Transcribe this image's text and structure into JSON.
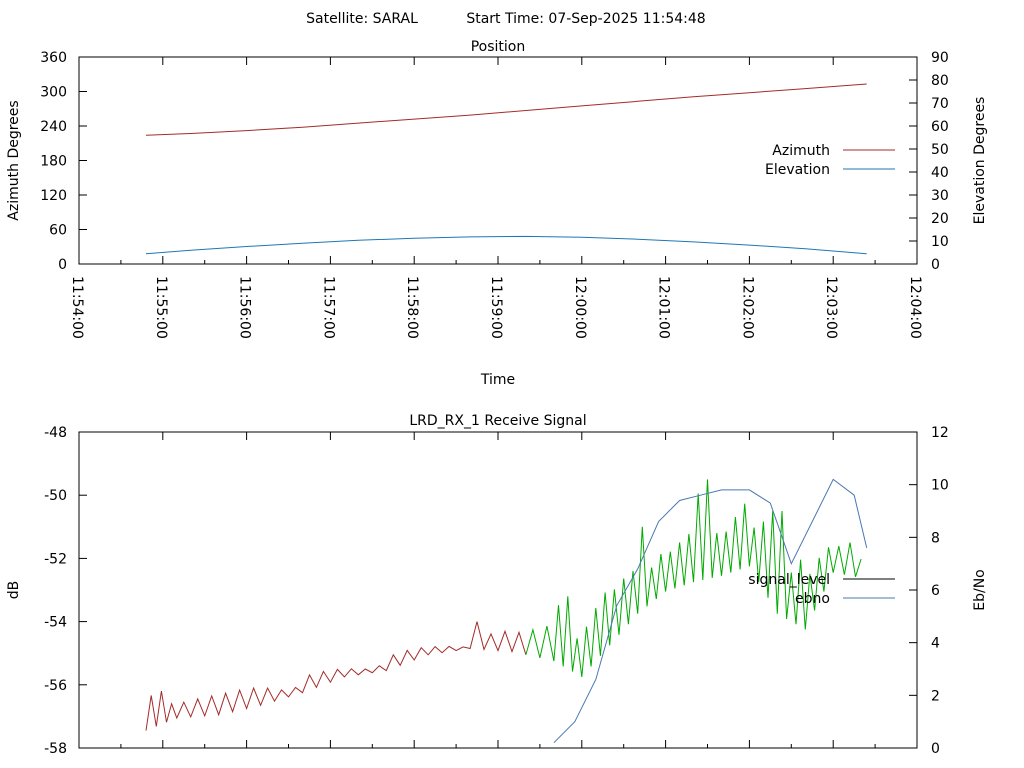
{
  "header": {
    "satellite": "Satellite: SARAL",
    "start_time": "Start Time: 07-Sep-2025 11:54:48"
  },
  "chart_data": [
    {
      "type": "line",
      "title": "Position",
      "xlabel": "Time",
      "ylabel": "Azimuth Degrees",
      "y2label": "Elevation Degrees",
      "x_ticks": [
        "11:54:00",
        "11:55:00",
        "11:56:00",
        "11:57:00",
        "11:58:00",
        "11:59:00",
        "12:00:00",
        "12:01:00",
        "12:02:00",
        "12:03:00",
        "12:04:00"
      ],
      "xlim": [
        "11:54:00",
        "12:04:00"
      ],
      "ylim": [
        0,
        360
      ],
      "y_ticks": [
        0,
        60,
        120,
        180,
        240,
        300,
        360
      ],
      "y2lim": [
        0,
        90
      ],
      "y2_ticks": [
        0,
        10,
        20,
        30,
        40,
        50,
        60,
        70,
        80,
        90
      ],
      "legend": "right",
      "series": [
        {
          "name": "Azimuth",
          "axis": "y",
          "color": "#a52a2a",
          "x": [
            "11:54:48",
            "11:55:20",
            "11:56:00",
            "11:56:40",
            "11:57:20",
            "11:58:00",
            "11:58:40",
            "11:59:20",
            "12:00:00",
            "12:00:40",
            "12:01:20",
            "12:02:00",
            "12:02:40",
            "12:03:24"
          ],
          "y": [
            224,
            227,
            232,
            238,
            245,
            252,
            259,
            267,
            275,
            283,
            291,
            298,
            305,
            313
          ]
        },
        {
          "name": "Elevation",
          "axis": "y2",
          "color": "#1f77b4",
          "x": [
            "11:54:48",
            "11:55:20",
            "11:56:00",
            "11:56:40",
            "11:57:20",
            "11:58:00",
            "11:58:40",
            "11:59:20",
            "12:00:00",
            "12:00:40",
            "12:01:20",
            "12:02:00",
            "12:02:40",
            "12:03:24"
          ],
          "y": [
            4.5,
            6.0,
            7.6,
            9.0,
            10.3,
            11.2,
            11.8,
            12.0,
            11.6,
            10.8,
            9.6,
            8.2,
            6.6,
            4.5
          ]
        }
      ]
    },
    {
      "type": "line",
      "title": "LRD_RX_1 Receive Signal",
      "xlabel": "",
      "ylabel": "dB",
      "y2label": "Eb/No",
      "xlim": [
        "11:54:00",
        "12:04:00"
      ],
      "ylim": [
        -58,
        -48
      ],
      "y_ticks": [
        -58,
        -56,
        -54,
        -52,
        -50,
        -48
      ],
      "y2lim": [
        0,
        12
      ],
      "y2_ticks": [
        0,
        2,
        4,
        6,
        8,
        10,
        12
      ],
      "legend": "right",
      "series": [
        {
          "name": "signal_level",
          "axis": "y",
          "color": "#a52a2a",
          "color_late": "#00aa00",
          "x": [
            "11:54:48",
            "11:55:10",
            "11:55:40",
            "11:56:10",
            "11:56:40",
            "11:57:10",
            "11:57:40",
            "11:58:10",
            "11:58:40",
            "11:59:10",
            "11:59:40",
            "12:00:00",
            "12:00:20",
            "12:00:40",
            "12:01:00",
            "12:01:20",
            "12:01:40",
            "12:02:00",
            "12:02:20",
            "12:02:40",
            "12:03:00",
            "12:03:24"
          ],
          "y": [
            -57.2,
            -56.8,
            -56.7,
            -56.4,
            -56.0,
            -55.5,
            -55.3,
            -54.8,
            -54.6,
            -54.7,
            -55.0,
            -55.5,
            -54.5,
            -53.5,
            -52.8,
            -52.5,
            -52.3,
            -52.0,
            -53.5,
            -54.0,
            -52.2,
            -52.4
          ],
          "peaks": [
            -56.2,
            -56.1,
            -55.5,
            -54.8,
            -54.0,
            -53.2,
            -52.4,
            -51.0,
            -49.5,
            -50.5,
            -51.5,
            -51.8
          ]
        },
        {
          "name": "ebno",
          "axis": "y2",
          "color": "#4a78b0",
          "x": [
            "11:59:40",
            "11:59:55",
            "12:00:10",
            "12:00:25",
            "12:00:40",
            "12:00:55",
            "12:01:10",
            "12:01:25",
            "12:01:40",
            "12:02:00",
            "12:02:15",
            "12:02:30",
            "12:02:45",
            "12:03:00",
            "12:03:15",
            "12:03:24"
          ],
          "y": [
            0.2,
            1.0,
            2.6,
            5.4,
            6.8,
            8.6,
            9.4,
            9.6,
            9.8,
            9.8,
            9.3,
            7.0,
            8.6,
            10.2,
            9.6,
            7.6
          ]
        }
      ]
    }
  ]
}
